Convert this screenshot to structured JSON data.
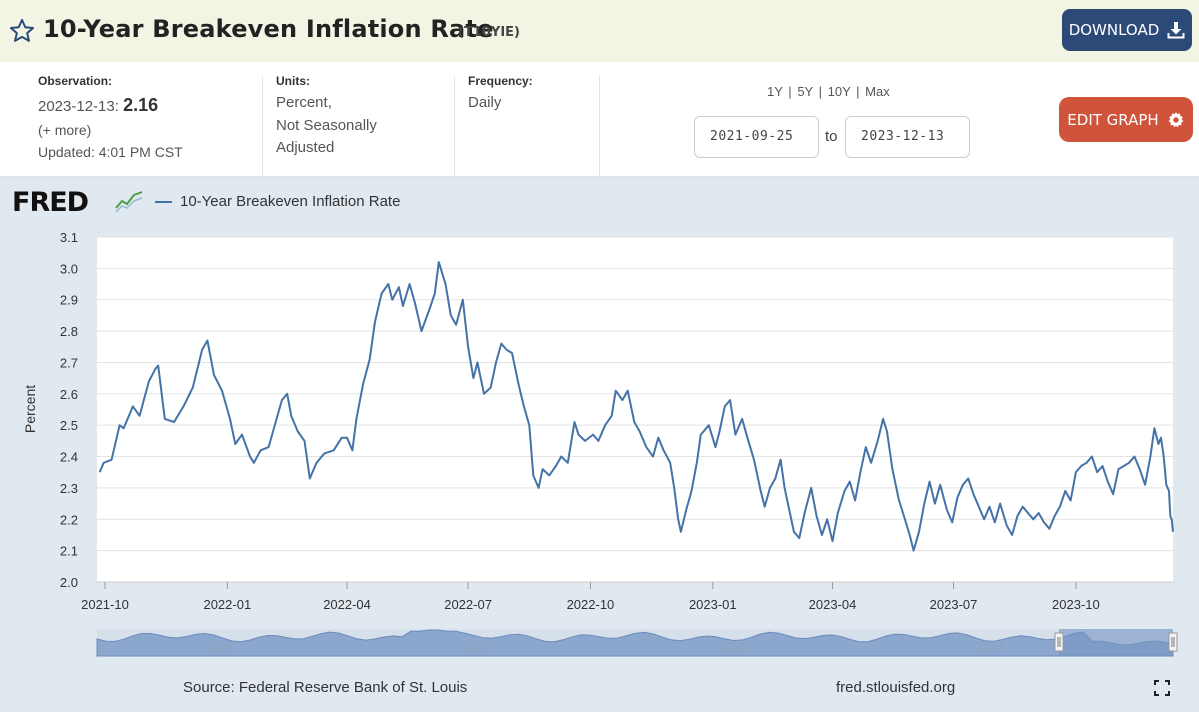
{
  "header": {
    "title": "10-Year Breakeven Inflation Rate",
    "series_id": "(T10YIE)",
    "download_label": "DOWNLOAD"
  },
  "meta": {
    "observation_label": "Observation:",
    "observation_date": "2023-12-13:",
    "observation_value": "2.16",
    "more_label": "(+ more)",
    "updated": "Updated: 4:01 PM CST",
    "units_label": "Units:",
    "units_lines": [
      "Percent,",
      "Not Seasonally",
      "Adjusted"
    ],
    "frequency_label": "Frequency:",
    "frequency_value": "Daily"
  },
  "range": {
    "links": [
      "1Y",
      "5Y",
      "10Y",
      "Max"
    ],
    "separator": "|",
    "start_date": "2021-09-25",
    "to_label": "to",
    "end_date": "2023-12-13"
  },
  "edit_label": "EDIT GRAPH",
  "logo_text": "FRED",
  "footer": {
    "source": "Source: Federal Reserve Bank of St. Louis",
    "site": "fred.stlouisfed.org"
  },
  "navigator": {
    "year_labels": [
      "2005",
      "2010",
      "2015",
      "2020"
    ]
  },
  "colors": {
    "title_bar": "#f2f4e4",
    "download_button": "#2c4a78",
    "edit_button": "#d0533b",
    "chart_background": "#e1e9f0",
    "series_line": "#4572a7",
    "navigator_fill": "#8ca7cd",
    "navigator_selected": "#7695c3"
  },
  "chart_data": {
    "type": "line",
    "ylabel": "Percent",
    "ylim": [
      2.0,
      3.1
    ],
    "yticks": [
      "2.0",
      "2.1",
      "2.2",
      "2.3",
      "2.4",
      "2.5",
      "2.6",
      "2.7",
      "2.8",
      "2.9",
      "3.0",
      "3.1"
    ],
    "xticks": [
      "2021-10",
      "2022-01",
      "2022-04",
      "2022-07",
      "2022-10",
      "2023-01",
      "2023-04",
      "2023-07",
      "2023-10"
    ],
    "grid": true,
    "legend_position": "top-left",
    "series": [
      {
        "name": "10-Year Breakeven Inflation Rate",
        "points": [
          [
            "2021-09-27",
            2.35
          ],
          [
            "2021-09-30",
            2.38
          ],
          [
            "2021-10-06",
            2.39
          ],
          [
            "2021-10-12",
            2.5
          ],
          [
            "2021-10-15",
            2.49
          ],
          [
            "2021-10-22",
            2.56
          ],
          [
            "2021-10-27",
            2.53
          ],
          [
            "2021-11-03",
            2.64
          ],
          [
            "2021-11-08",
            2.68
          ],
          [
            "2021-11-10",
            2.69
          ],
          [
            "2021-11-15",
            2.52
          ],
          [
            "2021-11-22",
            2.51
          ],
          [
            "2021-11-29",
            2.56
          ],
          [
            "2021-12-06",
            2.62
          ],
          [
            "2021-12-13",
            2.74
          ],
          [
            "2021-12-17",
            2.77
          ],
          [
            "2021-12-22",
            2.66
          ],
          [
            "2021-12-28",
            2.61
          ],
          [
            "2022-01-03",
            2.52
          ],
          [
            "2022-01-07",
            2.44
          ],
          [
            "2022-01-12",
            2.47
          ],
          [
            "2022-01-18",
            2.4
          ],
          [
            "2022-01-21",
            2.38
          ],
          [
            "2022-01-26",
            2.42
          ],
          [
            "2022-02-01",
            2.43
          ],
          [
            "2022-02-07",
            2.52
          ],
          [
            "2022-02-11",
            2.58
          ],
          [
            "2022-02-15",
            2.6
          ],
          [
            "2022-02-18",
            2.53
          ],
          [
            "2022-02-23",
            2.48
          ],
          [
            "2022-02-28",
            2.45
          ],
          [
            "2022-03-04",
            2.33
          ],
          [
            "2022-03-09",
            2.38
          ],
          [
            "2022-03-15",
            2.41
          ],
          [
            "2022-03-22",
            2.42
          ],
          [
            "2022-03-28",
            2.46
          ],
          [
            "2022-04-01",
            2.46
          ],
          [
            "2022-04-05",
            2.42
          ],
          [
            "2022-04-08",
            2.52
          ],
          [
            "2022-04-13",
            2.63
          ],
          [
            "2022-04-18",
            2.71
          ],
          [
            "2022-04-22",
            2.83
          ],
          [
            "2022-04-27",
            2.92
          ],
          [
            "2022-05-02",
            2.95
          ],
          [
            "2022-05-05",
            2.9
          ],
          [
            "2022-05-10",
            2.94
          ],
          [
            "2022-05-13",
            2.88
          ],
          [
            "2022-05-18",
            2.95
          ],
          [
            "2022-05-22",
            2.89
          ],
          [
            "2022-05-27",
            2.8
          ],
          [
            "2022-06-02",
            2.87
          ],
          [
            "2022-06-06",
            2.92
          ],
          [
            "2022-06-09",
            3.02
          ],
          [
            "2022-06-14",
            2.95
          ],
          [
            "2022-06-18",
            2.85
          ],
          [
            "2022-06-22",
            2.82
          ],
          [
            "2022-06-27",
            2.9
          ],
          [
            "2022-07-01",
            2.75
          ],
          [
            "2022-07-05",
            2.65
          ],
          [
            "2022-07-08",
            2.7
          ],
          [
            "2022-07-13",
            2.6
          ],
          [
            "2022-07-18",
            2.62
          ],
          [
            "2022-07-22",
            2.7
          ],
          [
            "2022-07-26",
            2.76
          ],
          [
            "2022-07-30",
            2.74
          ],
          [
            "2022-08-03",
            2.73
          ],
          [
            "2022-08-08",
            2.63
          ],
          [
            "2022-08-12",
            2.56
          ],
          [
            "2022-08-16",
            2.5
          ],
          [
            "2022-08-19",
            2.34
          ],
          [
            "2022-08-23",
            2.3
          ],
          [
            "2022-08-26",
            2.36
          ],
          [
            "2022-08-31",
            2.34
          ],
          [
            "2022-09-05",
            2.37
          ],
          [
            "2022-09-09",
            2.4
          ],
          [
            "2022-09-14",
            2.38
          ],
          [
            "2022-09-19",
            2.51
          ],
          [
            "2022-09-22",
            2.47
          ],
          [
            "2022-09-27",
            2.45
          ],
          [
            "2022-10-03",
            2.47
          ],
          [
            "2022-10-07",
            2.45
          ],
          [
            "2022-10-12",
            2.5
          ],
          [
            "2022-10-17",
            2.53
          ],
          [
            "2022-10-20",
            2.61
          ],
          [
            "2022-10-25",
            2.58
          ],
          [
            "2022-10-29",
            2.61
          ],
          [
            "2022-11-03",
            2.51
          ],
          [
            "2022-11-07",
            2.48
          ],
          [
            "2022-11-12",
            2.43
          ],
          [
            "2022-11-17",
            2.4
          ],
          [
            "2022-11-21",
            2.46
          ],
          [
            "2022-11-25",
            2.42
          ],
          [
            "2022-11-30",
            2.38
          ],
          [
            "2022-12-03",
            2.3
          ],
          [
            "2022-12-06",
            2.2
          ],
          [
            "2022-12-08",
            2.16
          ],
          [
            "2022-12-12",
            2.23
          ],
          [
            "2022-12-16",
            2.29
          ],
          [
            "2022-12-20",
            2.38
          ],
          [
            "2022-12-23",
            2.47
          ],
          [
            "2022-12-29",
            2.5
          ],
          [
            "2023-01-03",
            2.43
          ],
          [
            "2023-01-06",
            2.48
          ],
          [
            "2023-01-10",
            2.56
          ],
          [
            "2023-01-14",
            2.58
          ],
          [
            "2023-01-18",
            2.47
          ],
          [
            "2023-01-23",
            2.52
          ],
          [
            "2023-01-27",
            2.46
          ],
          [
            "2023-02-01",
            2.39
          ],
          [
            "2023-02-06",
            2.29
          ],
          [
            "2023-02-09",
            2.24
          ],
          [
            "2023-02-13",
            2.3
          ],
          [
            "2023-02-17",
            2.33
          ],
          [
            "2023-02-21",
            2.39
          ],
          [
            "2023-02-24",
            2.3
          ],
          [
            "2023-02-28",
            2.22
          ],
          [
            "2023-03-03",
            2.16
          ],
          [
            "2023-03-07",
            2.14
          ],
          [
            "2023-03-11",
            2.22
          ],
          [
            "2023-03-16",
            2.3
          ],
          [
            "2023-03-20",
            2.21
          ],
          [
            "2023-03-24",
            2.15
          ],
          [
            "2023-03-28",
            2.2
          ],
          [
            "2023-04-01",
            2.13
          ],
          [
            "2023-04-05",
            2.22
          ],
          [
            "2023-04-10",
            2.29
          ],
          [
            "2023-04-14",
            2.32
          ],
          [
            "2023-04-18",
            2.26
          ],
          [
            "2023-04-22",
            2.35
          ],
          [
            "2023-04-26",
            2.43
          ],
          [
            "2023-04-30",
            2.38
          ],
          [
            "2023-05-05",
            2.45
          ],
          [
            "2023-05-09",
            2.52
          ],
          [
            "2023-05-12",
            2.48
          ],
          [
            "2023-05-16",
            2.36
          ],
          [
            "2023-05-21",
            2.26
          ],
          [
            "2023-05-24",
            2.22
          ],
          [
            "2023-05-29",
            2.15
          ],
          [
            "2023-06-01",
            2.1
          ],
          [
            "2023-06-05",
            2.16
          ],
          [
            "2023-06-09",
            2.25
          ],
          [
            "2023-06-13",
            2.32
          ],
          [
            "2023-06-17",
            2.25
          ],
          [
            "2023-06-21",
            2.31
          ],
          [
            "2023-06-26",
            2.23
          ],
          [
            "2023-06-30",
            2.19
          ],
          [
            "2023-07-04",
            2.27
          ],
          [
            "2023-07-08",
            2.31
          ],
          [
            "2023-07-12",
            2.33
          ],
          [
            "2023-07-16",
            2.28
          ],
          [
            "2023-07-20",
            2.24
          ],
          [
            "2023-07-24",
            2.2
          ],
          [
            "2023-07-28",
            2.24
          ],
          [
            "2023-08-01",
            2.19
          ],
          [
            "2023-08-05",
            2.25
          ],
          [
            "2023-08-10",
            2.18
          ],
          [
            "2023-08-14",
            2.15
          ],
          [
            "2023-08-18",
            2.21
          ],
          [
            "2023-08-22",
            2.24
          ],
          [
            "2023-08-26",
            2.22
          ],
          [
            "2023-08-30",
            2.2
          ],
          [
            "2023-09-03",
            2.22
          ],
          [
            "2023-09-07",
            2.19
          ],
          [
            "2023-09-11",
            2.17
          ],
          [
            "2023-09-15",
            2.21
          ],
          [
            "2023-09-19",
            2.24
          ],
          [
            "2023-09-23",
            2.29
          ],
          [
            "2023-09-27",
            2.26
          ],
          [
            "2023-10-01",
            2.35
          ],
          [
            "2023-10-05",
            2.37
          ],
          [
            "2023-10-09",
            2.38
          ],
          [
            "2023-10-13",
            2.4
          ],
          [
            "2023-10-17",
            2.35
          ],
          [
            "2023-10-21",
            2.37
          ],
          [
            "2023-10-25",
            2.32
          ],
          [
            "2023-10-29",
            2.28
          ],
          [
            "2023-11-02",
            2.36
          ],
          [
            "2023-11-06",
            2.37
          ],
          [
            "2023-11-10",
            2.38
          ],
          [
            "2023-11-14",
            2.4
          ],
          [
            "2023-11-18",
            2.36
          ],
          [
            "2023-11-22",
            2.31
          ],
          [
            "2023-11-26",
            2.4
          ],
          [
            "2023-11-29",
            2.49
          ],
          [
            "2023-12-02",
            2.44
          ],
          [
            "2023-12-04",
            2.46
          ],
          [
            "2023-12-06",
            2.4
          ],
          [
            "2023-12-08",
            2.31
          ],
          [
            "2023-12-10",
            2.29
          ],
          [
            "2023-12-11",
            2.21
          ],
          [
            "2023-12-12",
            2.2
          ],
          [
            "2023-12-13",
            2.16
          ]
        ]
      }
    ]
  }
}
